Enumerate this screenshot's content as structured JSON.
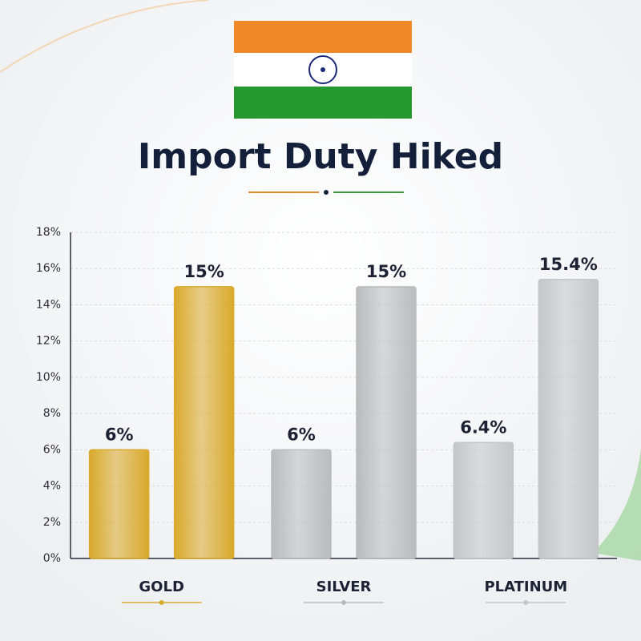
{
  "chart_data": {
    "type": "bar",
    "title": "Import Duty Hiked",
    "categories": [
      "GOLD",
      "SILVER",
      "PLATINUM"
    ],
    "colors": [
      "#d9a92b",
      "#b9bbbe",
      "#c4c6c9"
    ],
    "series": [
      {
        "values": [
          6,
          6,
          6.4
        ],
        "value_labels": [
          "6%",
          "6%",
          "6.4%"
        ]
      },
      {
        "values": [
          15,
          15,
          15.4
        ],
        "value_labels": [
          "15%",
          "15%",
          "15.4%"
        ]
      }
    ],
    "ylim": [
      0,
      18
    ],
    "yticks": [
      {
        "value": 0,
        "label": "0%"
      },
      {
        "value": 2,
        "label": "2%"
      },
      {
        "value": 4,
        "label": "4%"
      },
      {
        "value": 6,
        "label": "6%"
      },
      {
        "value": 8,
        "label": "8%"
      },
      {
        "value": 10,
        "label": "10%"
      },
      {
        "value": 12,
        "label": "12%"
      },
      {
        "value": 14,
        "label": "14%"
      },
      {
        "value": 16,
        "label": "16%"
      },
      {
        "value": 18,
        "label": "18%"
      }
    ],
    "grid": true
  }
}
